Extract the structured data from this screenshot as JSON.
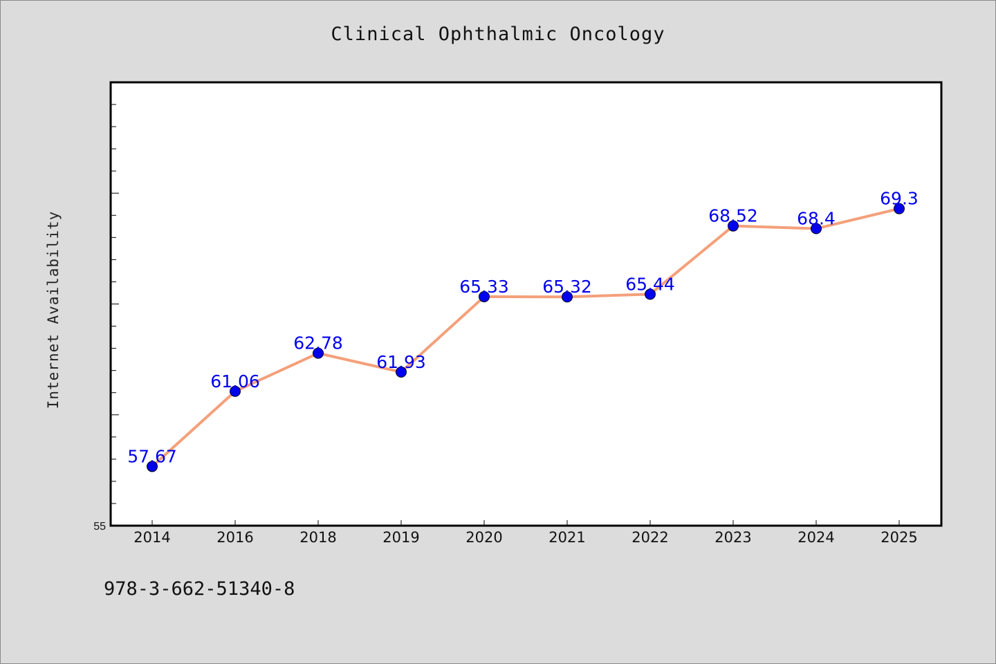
{
  "chart_data": {
    "type": "line",
    "title": "Clinical Ophthalmic Oncology",
    "xlabel": "",
    "ylabel": "Internet Availability",
    "categories": [
      "2014",
      "2016",
      "2018",
      "2019",
      "2020",
      "2021",
      "2022",
      "2023",
      "2024",
      "2025"
    ],
    "series": [
      {
        "values": [
          57.67,
          61.06,
          62.78,
          61.93,
          65.33,
          65.32,
          65.44,
          68.52,
          68.4,
          69.3
        ],
        "labels": [
          "57.67",
          "61.06",
          "62.78",
          "61.93",
          "65.33",
          "65.32",
          "65.44",
          "68.52",
          "68.4",
          "69.3"
        ],
        "line_color": "#f4a07a",
        "marker_color": "#0000ee",
        "label_color": "#0000ee"
      }
    ],
    "ylim": [
      55,
      75
    ],
    "y_tick_labels": [
      "55"
    ],
    "grid": false,
    "legend": "none"
  },
  "footer": {
    "isbn": "978-3-662-51340-8"
  }
}
